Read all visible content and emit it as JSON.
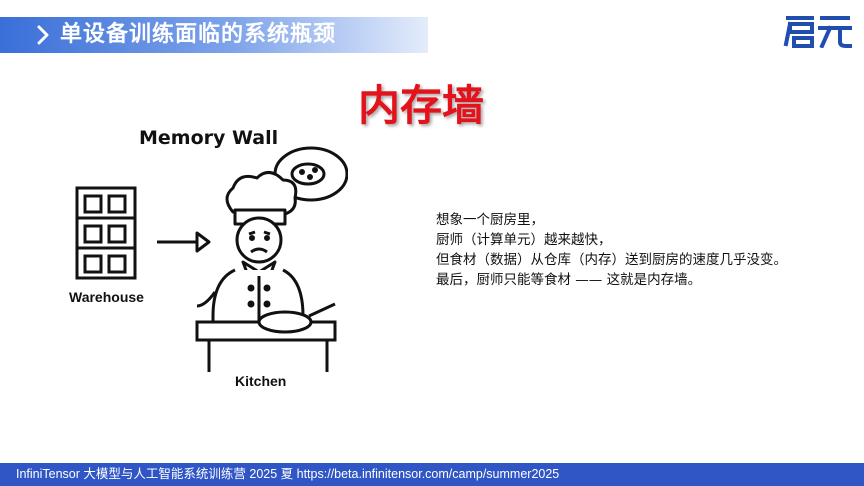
{
  "header": {
    "title": "单设备训练面临的系统瓶颈",
    "logo_text": "启元"
  },
  "slide": {
    "big_title": "内存墙",
    "illustration": {
      "title": "Memory Wall",
      "warehouse_label": "Warehouse",
      "kitchen_label": "Kitchen"
    },
    "lines": [
      "想象一个厨房里，",
      "厨师（计算单元）越来越快，",
      "但食材（数据）从仓库（内存）送到厨房的速度几乎没变。",
      "最后，厨师只能等食材 —— 这就是内存墙。"
    ]
  },
  "footer": {
    "text": "InfiniTensor 大模型与人工智能系统训练营 2025 夏    https://beta.infinitensor.com/camp/summer2025"
  }
}
